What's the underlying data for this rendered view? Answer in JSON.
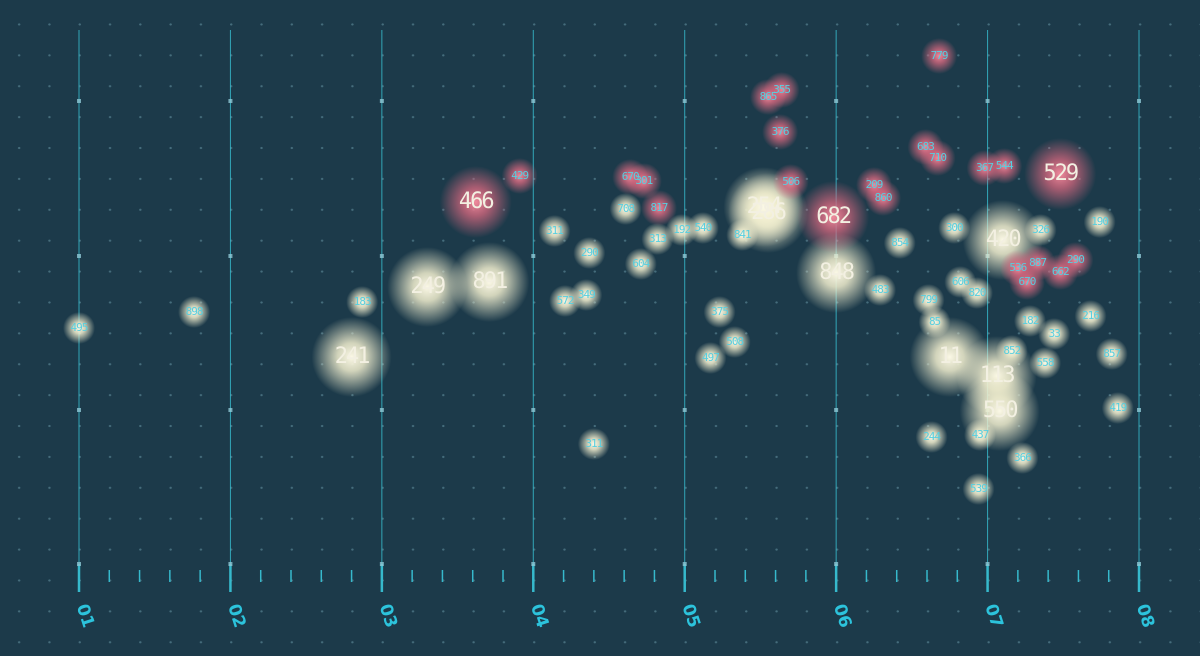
{
  "chart_data": {
    "type": "scatter",
    "xlim": [
      0.5,
      8.2
    ],
    "ylim": [
      0,
      112
    ],
    "xticks": [
      {
        "value": 1,
        "label": "01"
      },
      {
        "value": 2,
        "label": "02"
      },
      {
        "value": 3,
        "label": "03"
      },
      {
        "value": 4,
        "label": "04"
      },
      {
        "value": 5,
        "label": "05"
      },
      {
        "value": 6,
        "label": "06"
      },
      {
        "value": 7,
        "label": "07"
      },
      {
        "value": 8,
        "label": "08"
      }
    ],
    "axis_color": "#36b9cc",
    "series": [
      {
        "color": "#f2efcf",
        "x": [
          3.3,
          3.71,
          2.8,
          6.0,
          6.75,
          7.06,
          7.08,
          7.1,
          5.55,
          5.52
        ],
        "values": [
          54.6,
          55.6,
          40.6,
          57.4,
          40.6,
          36.8,
          29.8,
          64,
          69.4,
          70.6
        ],
        "labels": [
          249,
          891,
          241,
          848,
          11,
          113,
          550,
          420,
          286,
          254
        ]
      },
      {
        "color": "#d8687f",
        "x": [
          3.62,
          5.98,
          7.48
        ],
        "values": [
          71.6,
          68.6,
          77.2
        ],
        "labels": [
          466,
          682,
          529
        ]
      },
      {
        "color": "#f2efcf",
        "x": [
          1.0,
          1.76,
          2.87,
          4.21,
          4.35,
          5.23,
          5.17,
          5.33,
          4.4,
          4.37,
          4.71,
          6.63,
          6.95,
          6.94,
          7.23,
          7.86,
          7.82,
          7.38,
          7.68,
          7.44,
          7.16,
          7.35,
          7.74,
          6.29,
          6.61,
          6.65,
          6.82,
          6.93,
          7.28,
          6.78,
          6.42,
          5.12,
          4.61,
          4.82,
          4.14,
          4.98,
          5.38
        ],
        "values": [
          46.4,
          49.6,
          51.6,
          51.8,
          53,
          49.6,
          40.4,
          43.6,
          23.2,
          61.4,
          59.2,
          24.6,
          25,
          14.2,
          20.4,
          30.4,
          41.2,
          39.4,
          48.8,
          45.2,
          41.8,
          66,
          67.6,
          54,
          52,
          47.6,
          55.6,
          53.4,
          47.8,
          66.4,
          63.4,
          66.4,
          70.2,
          64.2,
          65.8,
          66,
          65
        ],
        "labels": [
          495,
          898,
          183,
          572,
          349,
          375,
          497,
          508,
          311,
          290,
          604,
          244,
          437,
          539,
          366,
          419,
          857,
          558,
          216,
          33,
          852,
          326,
          190,
          483,
          799,
          85,
          606,
          820,
          182,
          300,
          854,
          540,
          708,
          313,
          311,
          192,
          841
        ]
      },
      {
        "color": "#d8687f",
        "x": [
          6.68,
          5.64,
          5.55,
          5.63,
          3.91,
          4.64,
          4.73,
          4.83,
          5.7,
          6.31,
          6.25,
          6.59,
          6.67,
          6.98,
          7.11,
          7.58,
          7.48,
          7.26,
          7.2,
          7.33
        ],
        "values": [
          100.8,
          94,
          92.6,
          85.6,
          76.8,
          76.6,
          75.8,
          70.4,
          75.6,
          72.4,
          75,
          82.6,
          80.4,
          78.4,
          78.8,
          60,
          57.6,
          55.6,
          58.4,
          59.4
        ],
        "labels": [
          779,
          355,
          865,
          376,
          429,
          670,
          301,
          817,
          506,
          860,
          209,
          683,
          710,
          367,
          544,
          290,
          662,
          670,
          536,
          887
        ]
      }
    ]
  }
}
